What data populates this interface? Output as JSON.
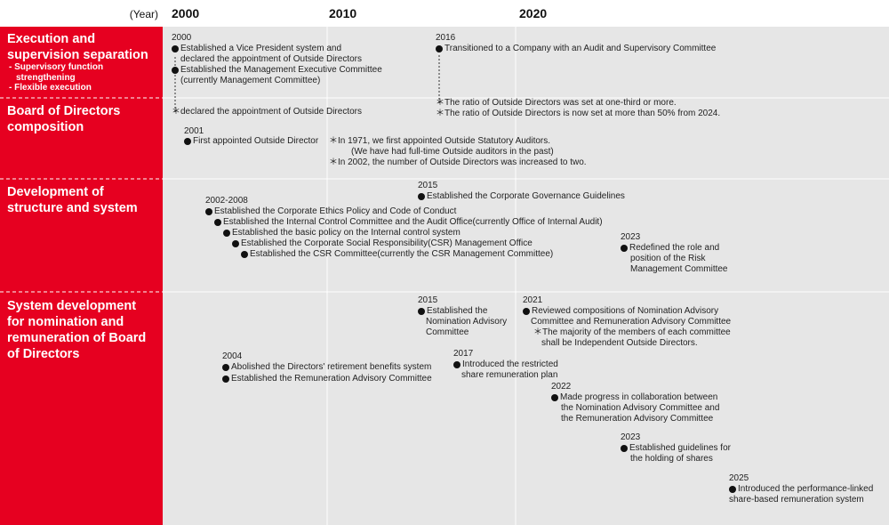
{
  "header": {
    "year_label": "(Year)",
    "years": [
      "2000",
      "2010",
      "2020"
    ]
  },
  "rows": [
    {
      "title": "Execution and supervision separation",
      "subitems": [
        "- Supervisory function strengthening",
        "- Flexible execution"
      ]
    },
    {
      "title": "Board of Directors composition"
    },
    {
      "title": "Development of structure and system"
    },
    {
      "title": "System development for nomination and remuneration of Board of Directors"
    }
  ],
  "events": [
    {
      "year": "2000",
      "lines": [
        "Established a Vice President system and",
        "declared the appointment of Outside Directors",
        "Established the Management Executive Committee",
        "(currently Management Committee)"
      ]
    },
    {
      "year": "2016",
      "lines": [
        "Transitioned to a Company with an Audit and Supervisory Committee"
      ]
    },
    {
      "lines": [
        "＊declared the appointment of Outside Directors"
      ]
    },
    {
      "lines": [
        "＊The ratio of Outside Directors was set at one-third or more.",
        "＊The ratio of Outside Directors is now set at more than 50% from 2024."
      ]
    },
    {
      "year": "2001",
      "lines": [
        "First appointed Outside Director"
      ]
    },
    {
      "lines": [
        "＊In 1971, we first appointed Outside Statutory Auditors.",
        "(We have had full-time Outside auditors in the past)",
        "＊In 2002, the number of Outside Directors was increased to two."
      ]
    },
    {
      "year": "2015",
      "lines": [
        "Established the Corporate Governance Guidelines"
      ]
    },
    {
      "year": "2002-2008",
      "lines": [
        "Established the Corporate Ethics Policy and Code of Conduct",
        "Established the Internal Control Committee and the Audit Office(currently Office of Internal Audit)",
        "Established the basic policy on the Internal control system",
        "Established the Corporate Social Responsibility(CSR) Management Office",
        "Established the CSR Committee(currently the CSR Management Committee)"
      ]
    },
    {
      "year": "2023",
      "lines": [
        "Redefined the role and",
        "position of the Risk",
        "Management Committee"
      ]
    },
    {
      "year": "2015",
      "lines": [
        "Established the",
        "Nomination Advisory",
        "Committee"
      ]
    },
    {
      "year": "2021",
      "lines": [
        "Reviewed compositions of Nomination Advisory",
        "Committee and Remuneration Advisory Committee",
        "＊The majority of the members of each committee",
        "shall be Independent Outside Directors."
      ]
    },
    {
      "year": "2004",
      "lines": [
        "Abolished the Directors' retirement benefits system",
        "Established the Remuneration Advisory Committee"
      ]
    },
    {
      "year": "2017",
      "lines": [
        "Introduced the restricted",
        "share remuneration plan"
      ]
    },
    {
      "year": "2022",
      "lines": [
        "Made progress in collaboration between",
        "the Nomination Advisory Committee and",
        "the Remuneration Advisory Committee"
      ]
    },
    {
      "year": "2023",
      "lines": [
        "Established guidelines for",
        "the holding of shares"
      ]
    },
    {
      "year": "2025",
      "lines": [
        "Introduced the performance-linked",
        "share-based remuneration system"
      ]
    }
  ]
}
